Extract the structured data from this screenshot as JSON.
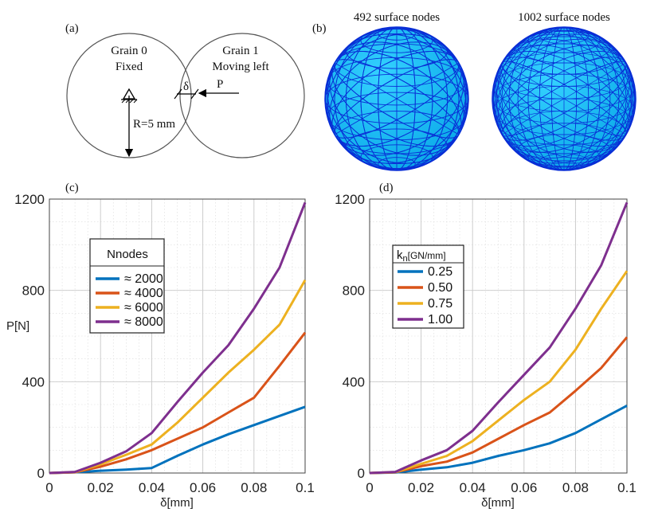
{
  "panels": {
    "a": {
      "label": "(a)",
      "grain0_name": "Grain 0",
      "grain0_state": "Fixed",
      "grain1_name": "Grain 1",
      "grain1_state": "Moving left",
      "delta_symbol": "δ",
      "force_symbol": "P",
      "radius_label": "R=5 mm"
    },
    "b": {
      "label": "(b)",
      "sphere1_label": "492 surface nodes",
      "sphere2_label": "1002 surface nodes",
      "sphere_fill": "#16c4f5",
      "mesh_color": "#0a2fd6"
    },
    "c": {
      "label": "(c)"
    },
    "d": {
      "label": "(d)"
    }
  },
  "colors": [
    "#0072bd",
    "#d95319",
    "#edb120",
    "#7e2f8e"
  ],
  "chart_data": [
    {
      "id": "c",
      "type": "line",
      "title": "",
      "xlabel": "δ[mm]",
      "ylabel": "P[N]",
      "xlim": [
        0,
        0.1
      ],
      "ylim": [
        0,
        1200
      ],
      "xticks": [
        "0",
        "0.02",
        "0.04",
        "0.06",
        "0.08",
        "0.1"
      ],
      "yticks": [
        "0",
        "400",
        "800",
        "1200"
      ],
      "grid": true,
      "legend_title": "Nnodes",
      "legend_position": "upper-left",
      "series": [
        {
          "name": "≈ 2000",
          "x": [
            0,
            0.01,
            0.02,
            0.03,
            0.04,
            0.05,
            0.06,
            0.07,
            0.08,
            0.09,
            0.1
          ],
          "y": [
            0,
            3,
            10,
            15,
            22,
            75,
            125,
            170,
            210,
            250,
            290
          ]
        },
        {
          "name": "≈ 4000",
          "x": [
            0,
            0.01,
            0.02,
            0.03,
            0.04,
            0.05,
            0.06,
            0.07,
            0.08,
            0.09,
            0.1
          ],
          "y": [
            0,
            3,
            28,
            60,
            100,
            150,
            200,
            265,
            330,
            470,
            615
          ]
        },
        {
          "name": "≈ 6000",
          "x": [
            0,
            0.01,
            0.02,
            0.03,
            0.04,
            0.05,
            0.06,
            0.07,
            0.08,
            0.09,
            0.1
          ],
          "y": [
            0,
            4,
            38,
            80,
            125,
            220,
            330,
            440,
            540,
            650,
            845
          ]
        },
        {
          "name": "≈ 8000",
          "x": [
            0,
            0.01,
            0.02,
            0.03,
            0.04,
            0.05,
            0.06,
            0.07,
            0.08,
            0.09,
            0.1
          ],
          "y": [
            0,
            5,
            45,
            95,
            175,
            310,
            440,
            560,
            720,
            900,
            1185
          ]
        }
      ]
    },
    {
      "id": "d",
      "type": "line",
      "title": "",
      "xlabel": "δ[mm]",
      "ylabel": "",
      "xlim": [
        0,
        0.1
      ],
      "ylim": [
        0,
        1200
      ],
      "xticks": [
        "0",
        "0.02",
        "0.04",
        "0.06",
        "0.08",
        "0.1"
      ],
      "yticks": [
        "0",
        "400",
        "800",
        "1200"
      ],
      "grid": true,
      "legend_title_main": "k",
      "legend_title_sub": "n",
      "legend_title_unit": "[GN/mm]",
      "legend_position": "upper-left",
      "series": [
        {
          "name": "0.25",
          "x": [
            0,
            0.01,
            0.02,
            0.03,
            0.04,
            0.05,
            0.06,
            0.07,
            0.08,
            0.09,
            0.1
          ],
          "y": [
            0,
            2,
            15,
            25,
            45,
            75,
            100,
            130,
            175,
            235,
            295
          ]
        },
        {
          "name": "0.50",
          "x": [
            0,
            0.01,
            0.02,
            0.03,
            0.04,
            0.05,
            0.06,
            0.07,
            0.08,
            0.09,
            0.1
          ],
          "y": [
            0,
            3,
            30,
            50,
            90,
            150,
            210,
            265,
            360,
            460,
            595
          ]
        },
        {
          "name": "0.75",
          "x": [
            0,
            0.01,
            0.02,
            0.03,
            0.04,
            0.05,
            0.06,
            0.07,
            0.08,
            0.09,
            0.1
          ],
          "y": [
            0,
            4,
            40,
            75,
            140,
            230,
            320,
            400,
            540,
            720,
            885
          ]
        },
        {
          "name": "1.00",
          "x": [
            0,
            0.01,
            0.02,
            0.03,
            0.04,
            0.05,
            0.06,
            0.07,
            0.08,
            0.09,
            0.1
          ],
          "y": [
            0,
            5,
            55,
            100,
            185,
            310,
            430,
            550,
            720,
            910,
            1185
          ]
        }
      ]
    }
  ]
}
